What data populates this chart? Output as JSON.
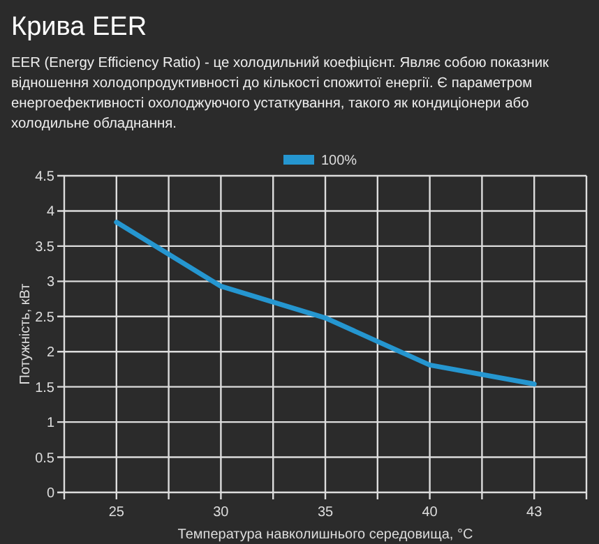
{
  "chart_data": {
    "type": "line",
    "title": "Крива EER",
    "subtitle": "EER (Energy Efficiency Ratio) - це холодильний коефіцієнт. Являє собою показник відношення холодопродуктивності до кількості спожитої енергії. Є параметром енергоефективності охолоджуючого устаткування, такого як кондиціонери або холодильне обладнання.",
    "xlabel": "Температура навколишнього середовища, °C",
    "ylabel": "Потужність, кВт",
    "categories": [
      "25",
      "30",
      "35",
      "40",
      "43"
    ],
    "series": [
      {
        "name": "100%",
        "color": "#2596d0",
        "values": [
          3.84,
          2.93,
          2.48,
          1.81,
          1.54
        ]
      }
    ],
    "ylim": [
      0,
      4.5
    ],
    "yticks": [
      0,
      0.5,
      1,
      1.5,
      2,
      2.5,
      3,
      3.5,
      4,
      4.5
    ],
    "grid": true,
    "legend": "top",
    "marker": "none",
    "line_style": "solid"
  }
}
